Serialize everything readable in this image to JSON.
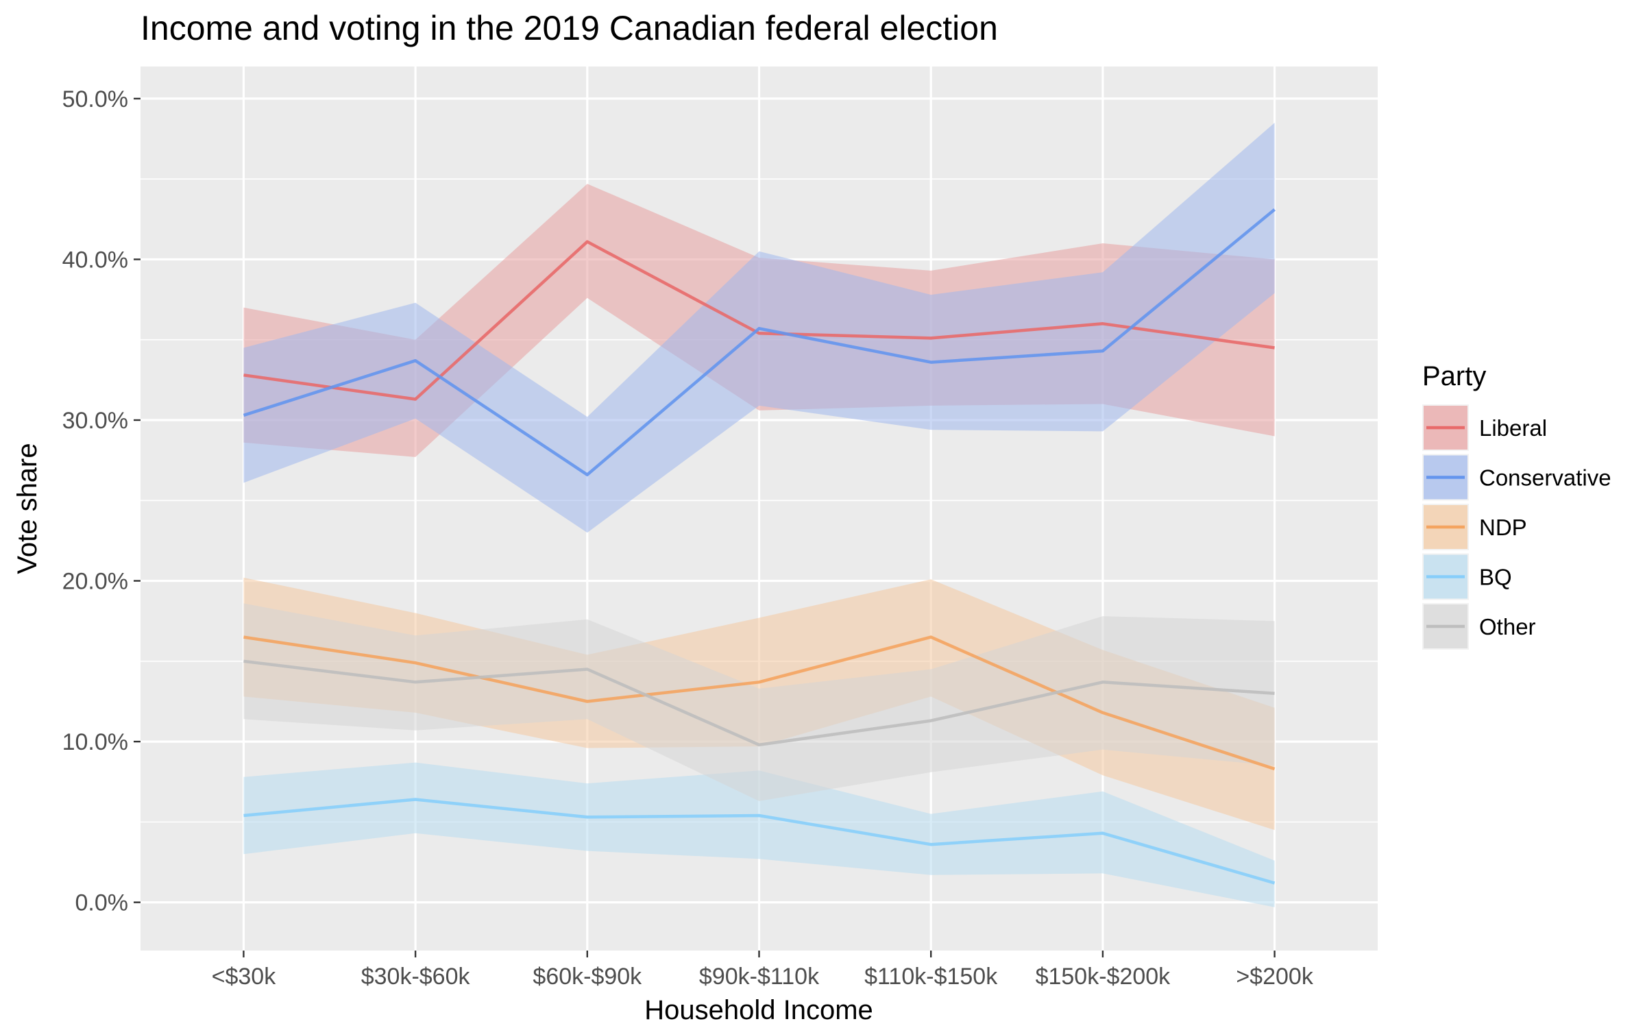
{
  "chart_data": {
    "type": "line",
    "title": "Income and voting in the 2019 Canadian federal election",
    "xlabel": "Household Income",
    "ylabel": "Vote share",
    "categories": [
      "<$30k",
      "$30k-$60k",
      "$60k-$90k",
      "$90k-$110k",
      "$110k-$150k",
      "$150k-$200k",
      ">$200k"
    ],
    "ylim": [
      -3.0,
      52.0
    ],
    "yticks": [
      0,
      10,
      20,
      30,
      40,
      50
    ],
    "ytick_labels": [
      "0.0%",
      "10.0%",
      "20.0%",
      "30.0%",
      "40.0%",
      "50.0%"
    ],
    "grid": true,
    "legend": {
      "title": "Party",
      "position": "right"
    },
    "series": [
      {
        "name": "Liberal",
        "color": "#e86a6a",
        "band_color": "#e8a0a0",
        "values": [
          32.8,
          31.3,
          41.1,
          35.4,
          35.1,
          36.0,
          34.5
        ],
        "lower": [
          28.6,
          27.7,
          37.6,
          30.6,
          30.9,
          31.0,
          29.0
        ],
        "upper": [
          37.0,
          35.0,
          44.7,
          40.1,
          39.3,
          41.0,
          40.0
        ]
      },
      {
        "name": "Conservative",
        "color": "#6495ed",
        "band_color": "#a0b8ec",
        "values": [
          30.3,
          33.7,
          26.6,
          35.7,
          33.6,
          34.3,
          43.1
        ],
        "lower": [
          26.1,
          30.1,
          23.0,
          30.9,
          29.4,
          29.3,
          37.9
        ],
        "upper": [
          34.5,
          37.3,
          30.2,
          40.5,
          37.8,
          39.2,
          48.5
        ]
      },
      {
        "name": "NDP",
        "color": "#f4a460",
        "band_color": "#f4c9a0",
        "values": [
          16.5,
          14.9,
          12.5,
          13.7,
          16.5,
          11.8,
          8.3
        ],
        "lower": [
          12.8,
          11.8,
          9.6,
          9.7,
          12.8,
          7.9,
          4.5
        ],
        "upper": [
          20.2,
          18.0,
          15.4,
          17.7,
          20.1,
          15.7,
          12.1
        ]
      },
      {
        "name": "BQ",
        "color": "#87cefa",
        "band_color": "#b8dcf0",
        "values": [
          5.4,
          6.4,
          5.3,
          5.4,
          3.6,
          4.3,
          1.2
        ],
        "lower": [
          3.0,
          4.3,
          3.2,
          2.7,
          1.7,
          1.8,
          -0.3
        ],
        "upper": [
          7.8,
          8.7,
          7.4,
          8.2,
          5.5,
          6.9,
          2.6
        ]
      },
      {
        "name": "Other",
        "color": "#bebebe",
        "band_color": "#d6d6d6",
        "values": [
          15.0,
          13.7,
          14.5,
          9.8,
          11.3,
          13.7,
          13.0
        ],
        "lower": [
          11.4,
          10.7,
          11.4,
          6.3,
          8.1,
          9.5,
          8.5
        ],
        "upper": [
          18.6,
          16.6,
          17.6,
          13.3,
          14.5,
          17.8,
          17.5
        ]
      }
    ]
  }
}
